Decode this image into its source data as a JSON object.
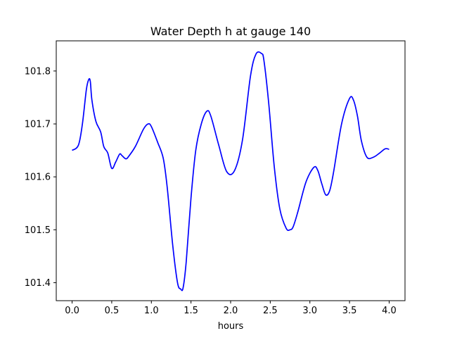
{
  "chart_data": {
    "type": "line",
    "title": "Water Depth h at gauge 140",
    "xlabel": "hours",
    "ylabel": "",
    "xlim": [
      -0.2,
      4.2
    ],
    "ylim": [
      101.366,
      101.857
    ],
    "grid": false,
    "legend": "none",
    "xticks": [
      0.0,
      0.5,
      1.0,
      1.5,
      2.0,
      2.5,
      3.0,
      3.5,
      4.0
    ],
    "xtick_labels": [
      "0.0",
      "0.5",
      "1.0",
      "1.5",
      "2.0",
      "2.5",
      "3.0",
      "3.5",
      "4.0"
    ],
    "yticks": [
      101.4,
      101.5,
      101.6,
      101.7,
      101.8
    ],
    "ytick_labels": [
      "101.4",
      "101.5",
      "101.6",
      "101.7",
      "101.8"
    ],
    "series": [
      {
        "color": "#0000ff",
        "x": [
          0.0,
          0.08,
          0.13,
          0.18,
          0.21,
          0.23,
          0.25,
          0.3,
          0.36,
          0.4,
          0.45,
          0.5,
          0.55,
          0.6,
          0.63,
          0.68,
          0.72,
          0.8,
          0.9,
          0.96,
          1.0,
          1.08,
          1.15,
          1.2,
          1.27,
          1.33,
          1.37,
          1.4,
          1.44,
          1.5,
          1.56,
          1.63,
          1.7,
          1.75,
          1.85,
          1.95,
          2.05,
          2.15,
          2.25,
          2.32,
          2.39,
          2.42,
          2.48,
          2.55,
          2.62,
          2.7,
          2.75,
          2.79,
          2.85,
          2.95,
          3.05,
          3.1,
          3.15,
          3.2,
          3.25,
          3.3,
          3.4,
          3.5,
          3.55,
          3.6,
          3.65,
          3.72,
          3.8,
          3.88,
          3.95,
          4.0
        ],
        "y": [
          101.65,
          101.66,
          101.7,
          101.765,
          101.784,
          101.78,
          101.745,
          101.705,
          101.685,
          101.657,
          101.645,
          101.616,
          101.628,
          101.643,
          101.64,
          101.634,
          101.64,
          101.658,
          101.69,
          101.7,
          101.695,
          101.665,
          101.635,
          101.58,
          101.47,
          101.4,
          101.388,
          101.39,
          101.44,
          101.56,
          101.65,
          101.7,
          101.724,
          101.715,
          101.66,
          101.61,
          101.612,
          101.67,
          101.79,
          101.832,
          101.833,
          101.82,
          101.74,
          101.62,
          101.54,
          101.503,
          101.5,
          101.506,
          101.535,
          101.59,
          101.618,
          101.612,
          101.587,
          101.566,
          101.574,
          101.61,
          101.7,
          101.748,
          101.745,
          101.715,
          101.668,
          101.637,
          101.637,
          101.645,
          101.653,
          101.652
        ]
      }
    ]
  }
}
